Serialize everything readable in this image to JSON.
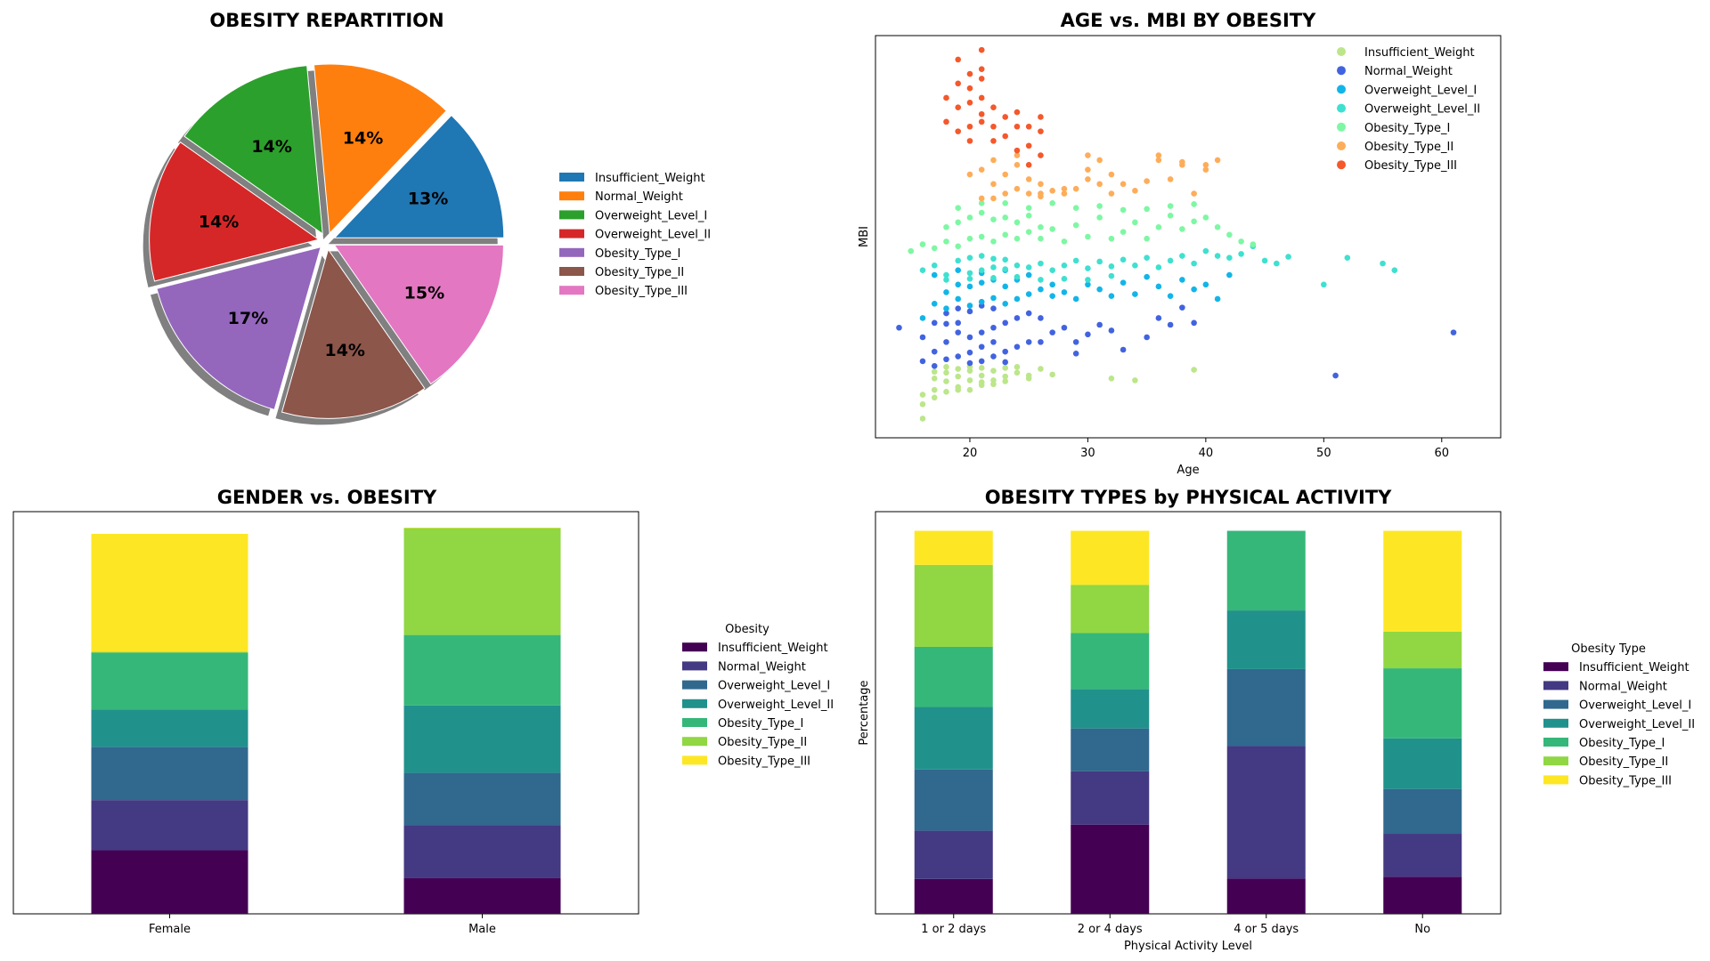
{
  "colors": {
    "tab10": [
      "#1f77b4",
      "#ff7f0e",
      "#2ca02c",
      "#d62728",
      "#9467bd",
      "#8c564b",
      "#e377c2"
    ],
    "viridis7": [
      "#440154",
      "#443983",
      "#31688e",
      "#21918c",
      "#35b779",
      "#90d743",
      "#fde725"
    ],
    "scatter": [
      "#bce68a",
      "#4263e0",
      "#12b5e8",
      "#3fe0d0",
      "#7ef7a3",
      "#fdad5a",
      "#f4582b"
    ]
  },
  "chart_data": [
    {
      "type": "pie",
      "title": "OBESITY REPARTITION",
      "labels": [
        "Insufficient_Weight",
        "Normal_Weight",
        "Overweight_Level_I",
        "Overweight_Level_II",
        "Obesity_Type_I",
        "Obesity_Type_II",
        "Obesity_Type_III"
      ],
      "values": [
        272,
        287,
        290,
        290,
        351,
        297,
        324
      ],
      "value_labels": [
        "13%",
        "14%",
        "14%",
        "14%",
        "17%",
        "14%",
        "15%"
      ],
      "legend": "right"
    },
    {
      "type": "scatter",
      "title": "AGE vs. MBI BY OBESITY",
      "xlabel": "Age",
      "ylabel": "MBI",
      "xlim": [
        12,
        65
      ],
      "ylim": [
        11,
        53
      ],
      "xticks": [
        "20",
        "30",
        "40",
        "50",
        "60"
      ],
      "legend": "top-right",
      "series": [
        {
          "name": "Insufficient_Weight",
          "x": [
            16,
            16,
            17,
            17,
            17,
            18,
            18,
            18,
            19,
            19,
            19,
            20,
            20,
            20,
            21,
            21,
            21,
            22,
            22,
            23,
            23,
            24,
            25,
            26,
            16,
            18,
            20,
            22,
            24,
            17,
            19,
            21,
            23,
            25,
            27,
            32,
            34,
            39
          ],
          "y": [
            13.0,
            14.5,
            15.2,
            16.0,
            17.2,
            15.8,
            16.9,
            17.8,
            16.3,
            17.4,
            18.2,
            16.0,
            17.0,
            18.0,
            16.5,
            17.5,
            18.3,
            17.0,
            18.0,
            17.4,
            18.3,
            17.8,
            17.5,
            18.2,
            15.5,
            18.4,
            18.4,
            16.6,
            18.4,
            17.9,
            16.0,
            16.8,
            16.9,
            17.2,
            17.6,
            17.2,
            17.0,
            18.1
          ]
        },
        {
          "name": "Normal_Weight",
          "x": [
            14,
            16,
            16,
            17,
            17,
            18,
            18,
            18,
            19,
            19,
            19,
            20,
            20,
            20,
            21,
            21,
            21,
            22,
            22,
            22,
            23,
            23,
            24,
            24,
            25,
            25,
            26,
            26,
            27,
            28,
            29,
            30,
            31,
            33,
            35,
            37,
            39,
            23,
            21,
            19,
            17,
            22,
            20,
            18,
            29,
            32,
            36,
            38,
            51,
            61
          ],
          "y": [
            22.5,
            19.0,
            21.5,
            18.5,
            23.0,
            19.2,
            21.0,
            24.0,
            19.5,
            22.0,
            24.5,
            18.8,
            21.5,
            24.2,
            19.0,
            22.0,
            24.8,
            19.5,
            22.5,
            24.5,
            20.0,
            23.0,
            20.5,
            23.5,
            21.0,
            24.0,
            21.0,
            23.5,
            22.0,
            22.5,
            19.8,
            21.8,
            22.8,
            20.2,
            21.5,
            22.8,
            23.0,
            18.9,
            20.5,
            23.0,
            20.0,
            21.0,
            19.9,
            22.9,
            21.0,
            22.2,
            23.5,
            24.6,
            17.5,
            22.0
          ]
        },
        {
          "name": "Overweight_Level_I",
          "x": [
            16,
            17,
            18,
            18,
            19,
            19,
            20,
            20,
            21,
            21,
            22,
            22,
            23,
            23,
            24,
            24,
            25,
            26,
            27,
            28,
            29,
            30,
            31,
            32,
            33,
            34,
            35,
            36,
            37,
            38,
            39,
            40,
            41,
            42,
            17,
            19,
            21,
            23,
            25,
            27
          ],
          "y": [
            23.5,
            25.0,
            24.5,
            26.2,
            25.5,
            27.0,
            24.8,
            26.8,
            25.2,
            27.2,
            25.6,
            27.5,
            25.0,
            26.8,
            25.5,
            27.5,
            26.0,
            26.5,
            25.8,
            26.2,
            25.5,
            27.0,
            26.5,
            25.8,
            27.2,
            26.0,
            27.8,
            26.8,
            25.8,
            27.5,
            26.5,
            27.0,
            25.5,
            28.0,
            28.0,
            28.5,
            28.2,
            28.5,
            28.0,
            27.0
          ]
        },
        {
          "name": "Overweight_Level_II",
          "x": [
            16,
            17,
            18,
            19,
            20,
            20,
            21,
            21,
            22,
            22,
            23,
            23,
            24,
            25,
            26,
            27,
            28,
            29,
            30,
            31,
            32,
            33,
            34,
            35,
            36,
            37,
            38,
            39,
            40,
            41,
            42,
            43,
            44,
            45,
            46,
            47,
            50,
            52,
            55,
            56,
            18,
            20,
            22,
            24,
            26,
            28,
            30,
            32
          ],
          "y": [
            28.5,
            29.0,
            28.0,
            29.5,
            28.2,
            29.8,
            28.5,
            30.0,
            28.8,
            29.7,
            28.6,
            29.6,
            29.0,
            28.8,
            29.2,
            28.5,
            29.0,
            29.5,
            28.7,
            29.4,
            28.9,
            29.6,
            29.0,
            29.8,
            28.8,
            29.5,
            30.0,
            29.2,
            30.5,
            30.0,
            29.8,
            30.2,
            31.0,
            29.5,
            29.2,
            29.9,
            27.0,
            29.8,
            29.2,
            28.5,
            27.5,
            27.6,
            27.7,
            27.8,
            27.5,
            27.6,
            27.5,
            27.9
          ]
        },
        {
          "name": "Obesity_Type_I",
          "x": [
            15,
            16,
            17,
            18,
            18,
            19,
            19,
            20,
            20,
            21,
            21,
            22,
            22,
            23,
            23,
            24,
            24,
            25,
            25,
            26,
            26,
            27,
            28,
            29,
            30,
            31,
            32,
            33,
            34,
            35,
            36,
            37,
            38,
            39,
            40,
            41,
            42,
            43,
            44,
            19,
            21,
            23,
            25,
            27,
            29,
            31,
            33,
            35,
            37,
            39
          ],
          "y": [
            30.5,
            31.2,
            30.8,
            31.5,
            33.0,
            31.0,
            33.5,
            31.8,
            34.0,
            32.0,
            34.5,
            31.5,
            33.8,
            32.2,
            34.0,
            31.8,
            33.5,
            32.5,
            34.2,
            31.8,
            33.0,
            32.8,
            31.5,
            33.2,
            32.0,
            34.0,
            31.8,
            32.5,
            33.5,
            31.8,
            33.0,
            34.2,
            32.8,
            33.6,
            34.0,
            33.0,
            32.2,
            31.5,
            31.2,
            35.0,
            35.5,
            35.5,
            35.0,
            35.5,
            35.0,
            35.2,
            34.8,
            34.9,
            35.2,
            35.4
          ]
        },
        {
          "name": "Obesity_Type_II",
          "x": [
            20,
            21,
            21,
            22,
            22,
            23,
            23,
            24,
            24,
            25,
            25,
            26,
            26,
            27,
            28,
            29,
            30,
            30,
            31,
            31,
            32,
            33,
            34,
            35,
            36,
            37,
            38,
            39,
            40,
            41,
            22,
            24,
            26,
            28,
            30,
            32,
            36,
            38,
            40
          ],
          "y": [
            38.5,
            36.0,
            39.0,
            37.5,
            40.0,
            36.5,
            38.5,
            37.0,
            39.5,
            36.5,
            38.0,
            36.2,
            37.5,
            36.8,
            36.5,
            37.0,
            38.0,
            40.5,
            37.5,
            40.0,
            38.5,
            37.5,
            36.8,
            37.8,
            40.0,
            38.0,
            39.5,
            36.5,
            39.5,
            40.0,
            36.0,
            40.5,
            36.5,
            37.0,
            39.0,
            36.5,
            40.5,
            39.8,
            39.0
          ]
        },
        {
          "name": "Obesity_Type_III",
          "x": [
            18,
            18,
            19,
            19,
            19,
            20,
            20,
            20,
            21,
            21,
            21,
            21,
            22,
            22,
            23,
            23,
            24,
            24,
            25,
            25,
            25,
            26,
            26,
            19,
            20,
            21,
            22,
            24,
            26,
            20,
            21
          ],
          "y": [
            44.0,
            46.5,
            43.0,
            45.5,
            48.0,
            43.5,
            46.0,
            49.0,
            44.0,
            46.5,
            49.5,
            51.5,
            43.5,
            45.5,
            42.5,
            44.5,
            41.0,
            43.5,
            39.5,
            41.5,
            43.5,
            40.5,
            43.0,
            50.5,
            47.5,
            48.5,
            42.0,
            45.0,
            44.5,
            42.0,
            44.8
          ]
        }
      ]
    },
    {
      "type": "bar",
      "stacked": true,
      "title": "GENDER vs. OBESITY",
      "categories": [
        "Female",
        "Male"
      ],
      "legend_title": "Obesity",
      "legend": "right",
      "series": [
        {
          "name": "Insufficient_Weight",
          "values": [
            16.6,
            9.3
          ]
        },
        {
          "name": "Normal_Weight",
          "values": [
            13.1,
            13.9
          ]
        },
        {
          "name": "Overweight_Level_I",
          "values": [
            13.9,
            13.6
          ]
        },
        {
          "name": "Overweight_Level_II",
          "values": [
            9.7,
            17.6
          ]
        },
        {
          "name": "Obesity_Type_I",
          "values": [
            14.9,
            18.4
          ]
        },
        {
          "name": "Obesity_Type_II",
          "values": [
            0.2,
            27.9
          ]
        },
        {
          "name": "Obesity_Type_III",
          "values": [
            30.8,
            0.1
          ]
        }
      ]
    },
    {
      "type": "bar",
      "stacked": true,
      "title": "OBESITY TYPES by PHYSICAL ACTIVITY",
      "xlabel": "Physical Activity Level",
      "ylabel": "Percentage",
      "categories": [
        "1 or 2 days",
        "2 or 4 days",
        "4 or 5 days",
        "No"
      ],
      "legend_title": "Obesity Type",
      "legend": "right",
      "series": [
        {
          "name": "Insufficient_Weight",
          "values": [
            9.1,
            23.3,
            9.2,
            9.7
          ]
        },
        {
          "name": "Normal_Weight",
          "values": [
            12.6,
            13.9,
            34.6,
            11.2
          ]
        },
        {
          "name": "Overweight_Level_I",
          "values": [
            16.0,
            11.2,
            20.1,
            11.7
          ]
        },
        {
          "name": "Overweight_Level_II",
          "values": [
            16.3,
            10.3,
            15.3,
            13.2
          ]
        },
        {
          "name": "Obesity_Type_I",
          "values": [
            15.7,
            14.6,
            20.8,
            18.3
          ]
        },
        {
          "name": "Obesity_Type_II",
          "values": [
            21.4,
            12.6,
            0.0,
            9.6
          ]
        },
        {
          "name": "Obesity_Type_III",
          "values": [
            8.9,
            14.1,
            0.0,
            26.3
          ]
        }
      ]
    }
  ]
}
